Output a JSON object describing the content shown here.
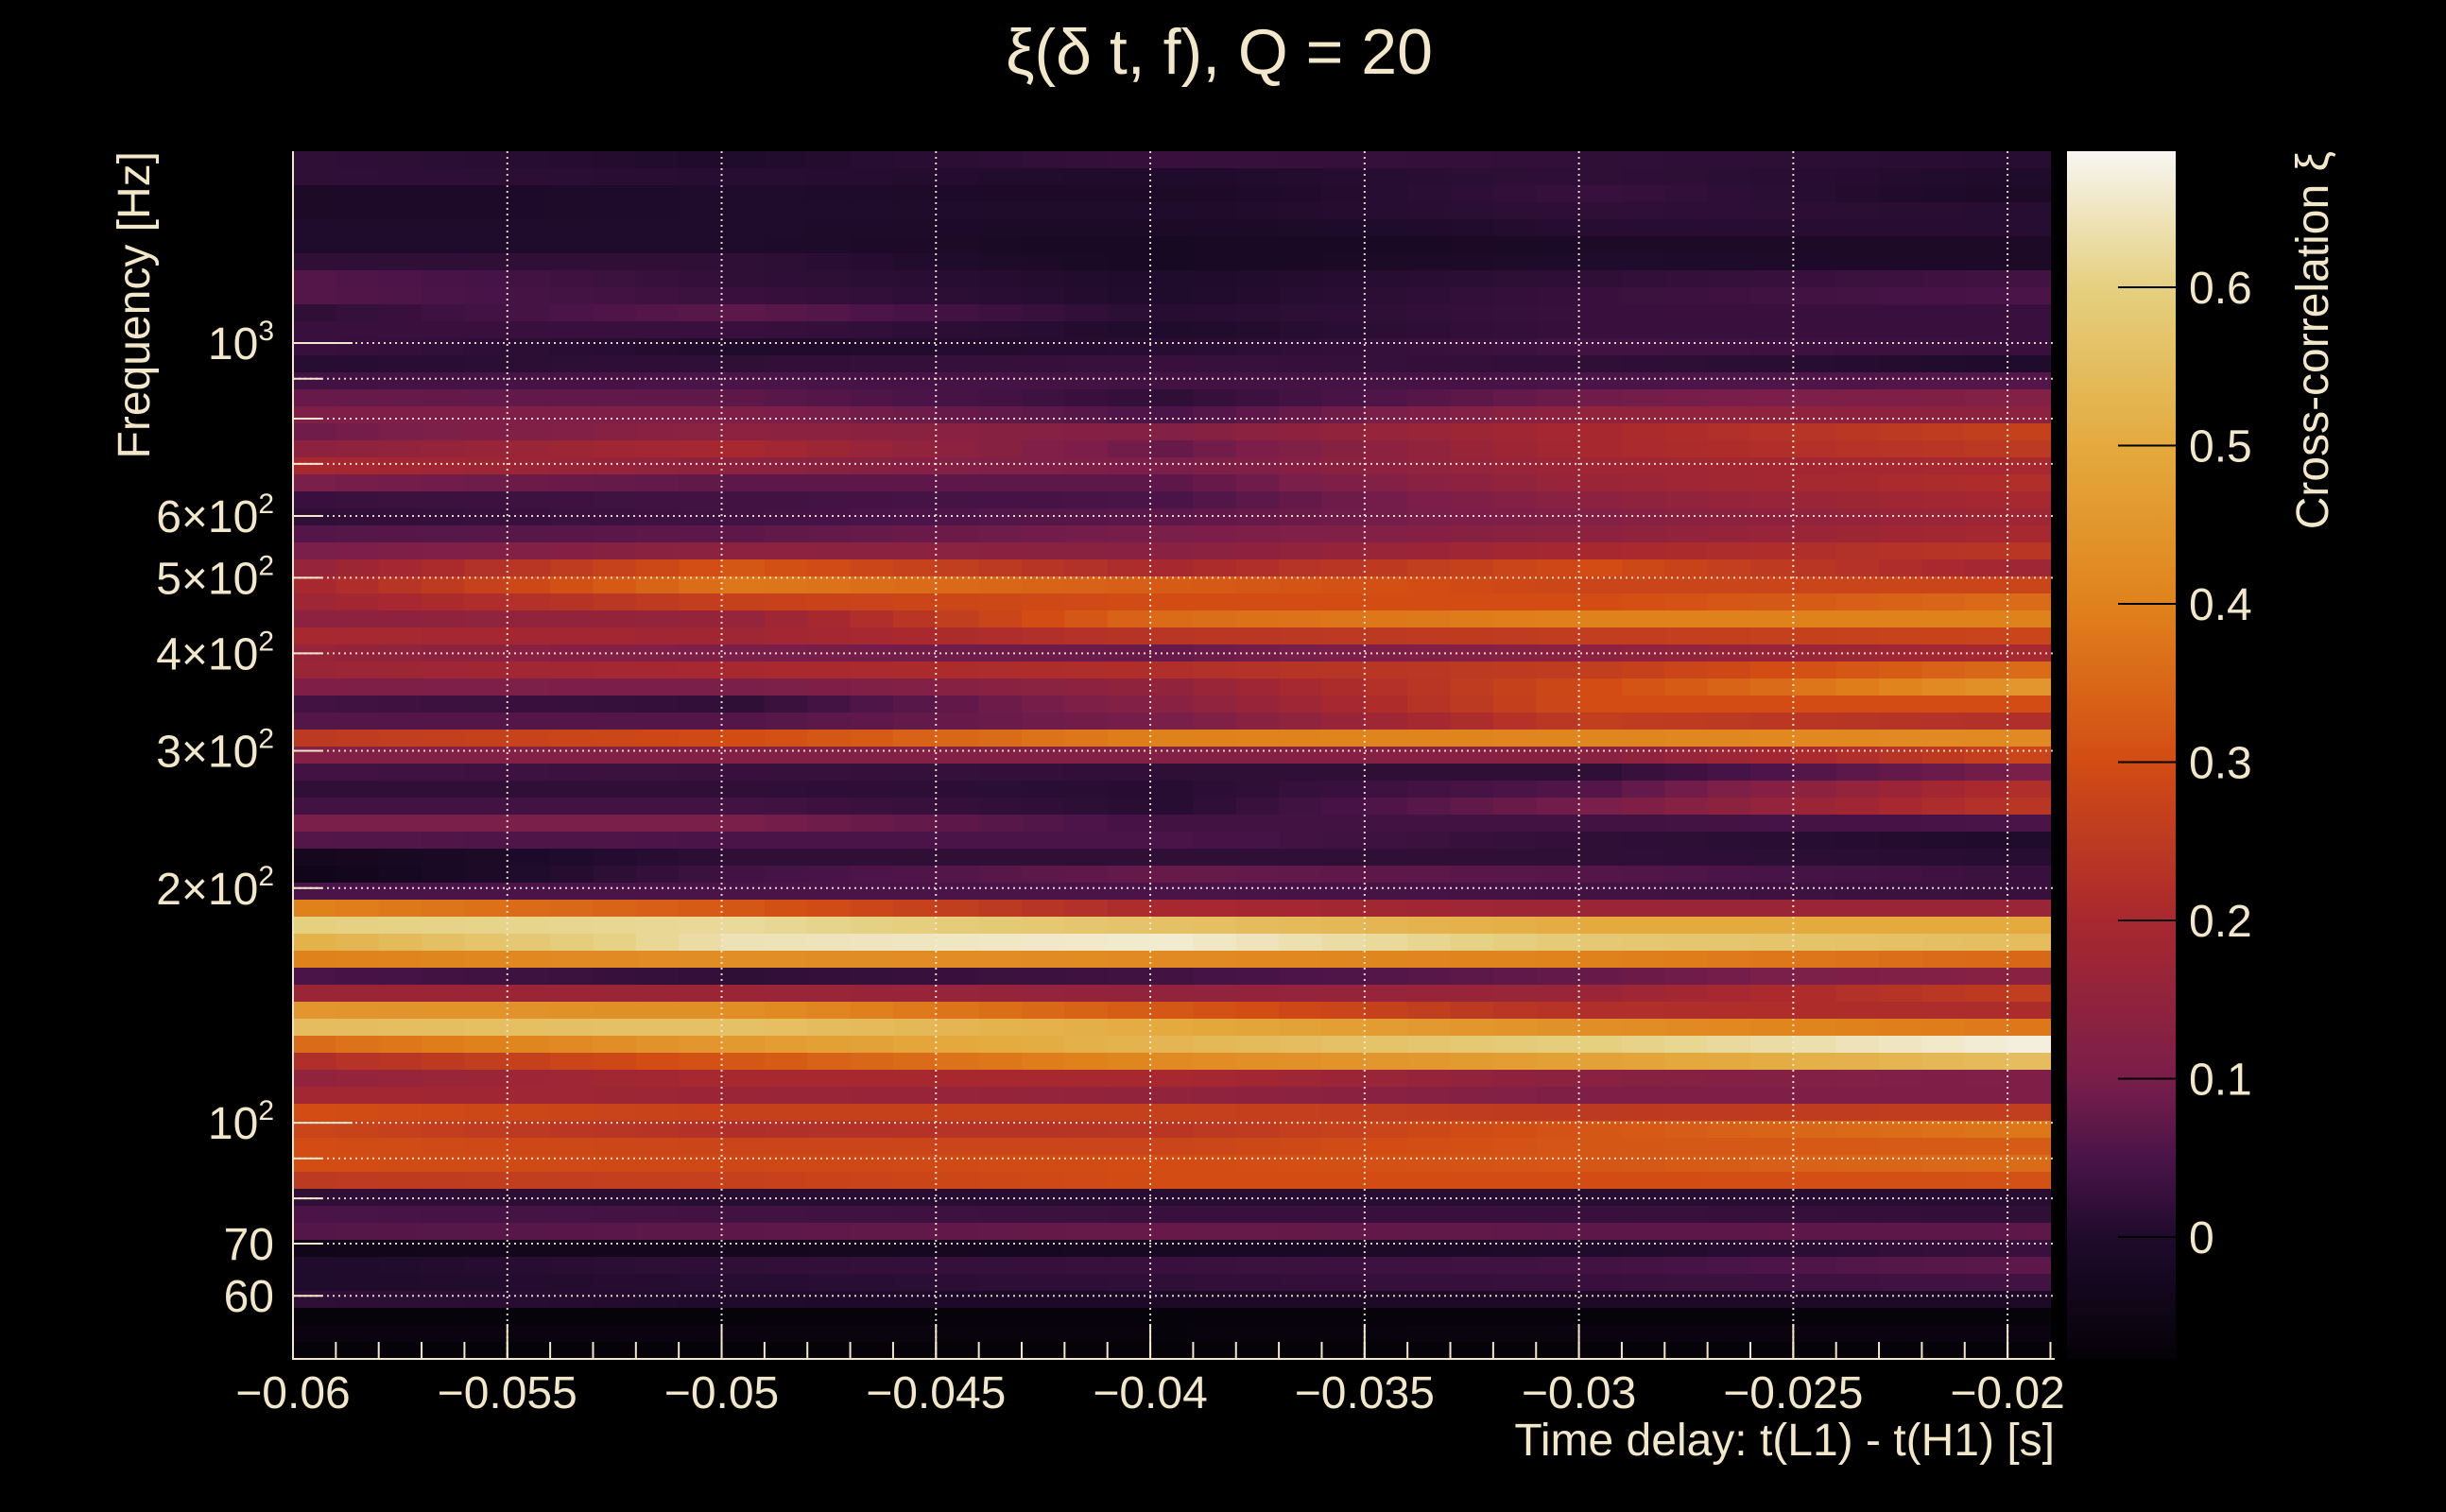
{
  "chart_data": {
    "type": "heatmap",
    "title": "ξ(δ t, f), Q = 20",
    "xlabel": "Time delay: t(L1) - t(H1) [s]",
    "ylabel": "Frequency [Hz]",
    "colorbar_label": "Cross-correlation ξ",
    "xlim": [
      -0.06,
      -0.0189
    ],
    "ylim": [
      49.8,
      1762
    ],
    "yscale": "log",
    "zlim": [
      -0.077,
      0.686
    ],
    "grid": true,
    "x_ticks": [
      {
        "value": -0.06,
        "label": "−0.06"
      },
      {
        "value": -0.055,
        "label": "−0.055"
      },
      {
        "value": -0.05,
        "label": "−0.05"
      },
      {
        "value": -0.045,
        "label": "−0.045"
      },
      {
        "value": -0.04,
        "label": "−0.04"
      },
      {
        "value": -0.035,
        "label": "−0.035"
      },
      {
        "value": -0.03,
        "label": "−0.03"
      },
      {
        "value": -0.025,
        "label": "−0.025"
      },
      {
        "value": -0.02,
        "label": "−0.02"
      }
    ],
    "x_minor_step": 0.001,
    "y_ticks": [
      {
        "value": 1000,
        "mantissa": "10",
        "exponent": "3",
        "major": true
      },
      {
        "value": 900,
        "mantissa": "",
        "exponent": "",
        "major": false
      },
      {
        "value": 800,
        "mantissa": "",
        "exponent": "",
        "major": false
      },
      {
        "value": 700,
        "mantissa": "",
        "exponent": "",
        "major": false
      },
      {
        "value": 600,
        "mantissa": "6×10",
        "exponent": "2",
        "major": false
      },
      {
        "value": 500,
        "mantissa": "5×10",
        "exponent": "2",
        "major": false
      },
      {
        "value": 400,
        "mantissa": "4×10",
        "exponent": "2",
        "major": false
      },
      {
        "value": 300,
        "mantissa": "3×10",
        "exponent": "2",
        "major": false
      },
      {
        "value": 200,
        "mantissa": "2×10",
        "exponent": "2",
        "major": false
      },
      {
        "value": 100,
        "mantissa": "10",
        "exponent": "2",
        "major": true
      },
      {
        "value": 90,
        "mantissa": "",
        "exponent": "",
        "major": false
      },
      {
        "value": 80,
        "mantissa": "",
        "exponent": "",
        "major": false
      },
      {
        "value": 70,
        "mantissa": "70",
        "exponent": "",
        "major": false
      },
      {
        "value": 60,
        "mantissa": "60",
        "exponent": "",
        "major": false
      }
    ],
    "colorbar_ticks": [
      {
        "value": 0,
        "label": "0"
      },
      {
        "value": 0.1,
        "label": "0.1"
      },
      {
        "value": 0.2,
        "label": "0.2"
      },
      {
        "value": 0.3,
        "label": "0.3"
      },
      {
        "value": 0.4,
        "label": "0.4"
      },
      {
        "value": 0.5,
        "label": "0.5"
      },
      {
        "value": 0.6,
        "label": "0.6"
      }
    ],
    "colormap": [
      {
        "value": -0.077,
        "color": "#050208"
      },
      {
        "value": 0.0,
        "color": "#1f0b2c"
      },
      {
        "value": 0.05,
        "color": "#4a1448"
      },
      {
        "value": 0.1,
        "color": "#7a1e4a"
      },
      {
        "value": 0.2,
        "color": "#a8282f"
      },
      {
        "value": 0.3,
        "color": "#d24c14"
      },
      {
        "value": 0.4,
        "color": "#e0821c"
      },
      {
        "value": 0.5,
        "color": "#e4aa3e"
      },
      {
        "value": 0.6,
        "color": "#e5d080"
      },
      {
        "value": 0.686,
        "color": "#f7f6f2"
      }
    ],
    "time_bins": {
      "start": -0.06,
      "step": 0.001,
      "count": 41
    },
    "frequency_bins": {
      "low": 49.8,
      "high": 1762,
      "count": 71,
      "order": "high-to-low"
    },
    "anchor_times": [
      -0.0595,
      -0.0495,
      -0.0395,
      -0.0295,
      -0.0195
    ],
    "rows_high_to_low": [
      [
        0.02,
        0.0,
        0.03,
        0.02,
        0.01
      ],
      [
        0.02,
        0.01,
        0.0,
        0.02,
        0.0
      ],
      [
        -0.01,
        0.0,
        -0.01,
        0.03,
        -0.01
      ],
      [
        -0.01,
        0.0,
        0.0,
        0.02,
        0.01
      ],
      [
        0.0,
        0.0,
        -0.01,
        0.01,
        0.01
      ],
      [
        0.0,
        0.0,
        -0.02,
        -0.01,
        -0.01
      ],
      [
        0.02,
        0.02,
        -0.02,
        0.0,
        -0.01
      ],
      [
        0.06,
        0.02,
        0.0,
        0.02,
        0.04
      ],
      [
        0.06,
        0.03,
        0.0,
        0.03,
        0.05
      ],
      [
        0.02,
        0.07,
        0.01,
        0.03,
        0.03
      ],
      [
        0.03,
        0.03,
        0.0,
        0.03,
        0.03
      ],
      [
        0.03,
        0.0,
        0.01,
        0.04,
        0.03
      ],
      [
        0.01,
        0.02,
        0.03,
        0.02,
        0.0
      ],
      [
        0.04,
        0.05,
        0.04,
        0.05,
        0.06
      ],
      [
        0.08,
        0.07,
        0.02,
        0.09,
        0.12
      ],
      [
        0.11,
        0.11,
        0.05,
        0.15,
        0.14
      ],
      [
        0.09,
        0.14,
        0.12,
        0.2,
        0.27
      ],
      [
        0.14,
        0.2,
        0.08,
        0.2,
        0.25
      ],
      [
        0.2,
        0.14,
        0.1,
        0.18,
        0.2
      ],
      [
        0.1,
        0.07,
        0.07,
        0.17,
        0.22
      ],
      [
        0.03,
        0.04,
        0.05,
        0.14,
        0.2
      ],
      [
        0.02,
        0.04,
        0.07,
        0.12,
        0.18
      ],
      [
        0.06,
        0.07,
        0.1,
        0.14,
        0.2
      ],
      [
        0.1,
        0.14,
        0.13,
        0.2,
        0.24
      ],
      [
        0.16,
        0.32,
        0.2,
        0.3,
        0.18
      ],
      [
        0.2,
        0.38,
        0.33,
        0.28,
        0.28
      ],
      [
        0.18,
        0.27,
        0.3,
        0.3,
        0.36
      ],
      [
        0.14,
        0.16,
        0.36,
        0.4,
        0.4
      ],
      [
        0.2,
        0.18,
        0.24,
        0.26,
        0.28
      ],
      [
        0.16,
        0.1,
        0.08,
        0.14,
        0.2
      ],
      [
        0.17,
        0.2,
        0.22,
        0.26,
        0.36
      ],
      [
        0.11,
        0.1,
        0.15,
        0.3,
        0.45
      ],
      [
        0.04,
        0.02,
        0.13,
        0.3,
        0.3
      ],
      [
        0.06,
        0.06,
        0.1,
        0.26,
        0.22
      ],
      [
        0.25,
        0.3,
        0.4,
        0.41,
        0.42
      ],
      [
        0.12,
        0.12,
        0.12,
        0.13,
        0.28
      ],
      [
        0.04,
        0.03,
        0.02,
        0.02,
        0.1
      ],
      [
        0.02,
        0.02,
        0.01,
        0.06,
        0.22
      ],
      [
        0.04,
        0.04,
        0.01,
        0.1,
        0.24
      ],
      [
        0.1,
        0.1,
        0.04,
        0.04,
        0.05
      ],
      [
        0.06,
        0.05,
        0.05,
        0.02,
        0.0
      ],
      [
        -0.03,
        0.02,
        0.02,
        0.02,
        0.01
      ],
      [
        -0.04,
        0.04,
        0.08,
        0.06,
        0.03
      ],
      [
        0.05,
        0.05,
        0.05,
        0.04,
        0.03
      ],
      [
        0.4,
        0.32,
        0.2,
        0.17,
        0.17
      ],
      [
        0.6,
        0.62,
        0.56,
        0.5,
        0.5
      ],
      [
        0.52,
        0.64,
        0.66,
        0.58,
        0.55
      ],
      [
        0.4,
        0.43,
        0.42,
        0.4,
        0.35
      ],
      [
        0.05,
        0.02,
        0.04,
        0.08,
        0.13
      ],
      [
        0.17,
        0.17,
        0.15,
        0.17,
        0.26
      ],
      [
        0.45,
        0.43,
        0.32,
        0.22,
        0.21
      ],
      [
        0.55,
        0.56,
        0.5,
        0.43,
        0.38
      ],
      [
        0.36,
        0.46,
        0.53,
        0.6,
        0.67
      ],
      [
        0.22,
        0.32,
        0.42,
        0.48,
        0.55
      ],
      [
        0.15,
        0.2,
        0.2,
        0.13,
        0.11
      ],
      [
        0.19,
        0.17,
        0.15,
        0.11,
        0.11
      ],
      [
        0.3,
        0.27,
        0.27,
        0.25,
        0.26
      ],
      [
        0.28,
        0.22,
        0.24,
        0.32,
        0.38
      ],
      [
        0.3,
        0.28,
        0.28,
        0.32,
        0.33
      ],
      [
        0.3,
        0.29,
        0.3,
        0.32,
        0.36
      ],
      [
        0.25,
        0.27,
        0.3,
        0.3,
        0.31
      ],
      [
        0.02,
        0.01,
        0.01,
        0.01,
        0.01
      ],
      [
        0.05,
        0.04,
        0.03,
        0.03,
        0.02
      ],
      [
        0.06,
        0.07,
        0.08,
        0.07,
        0.07
      ],
      [
        -0.04,
        -0.03,
        -0.02,
        0.0,
        0.03
      ],
      [
        0.0,
        0.02,
        0.03,
        0.04,
        0.07
      ],
      [
        0.0,
        0.01,
        0.02,
        0.03,
        0.04
      ],
      [
        0.02,
        0.0,
        -0.01,
        -0.01,
        -0.01
      ],
      [
        -0.07,
        -0.07,
        -0.07,
        -0.07,
        -0.07
      ],
      [
        -0.06,
        -0.06,
        -0.07,
        -0.06,
        -0.06
      ],
      [
        -0.076,
        -0.076,
        -0.076,
        -0.076,
        -0.076
      ]
    ]
  }
}
